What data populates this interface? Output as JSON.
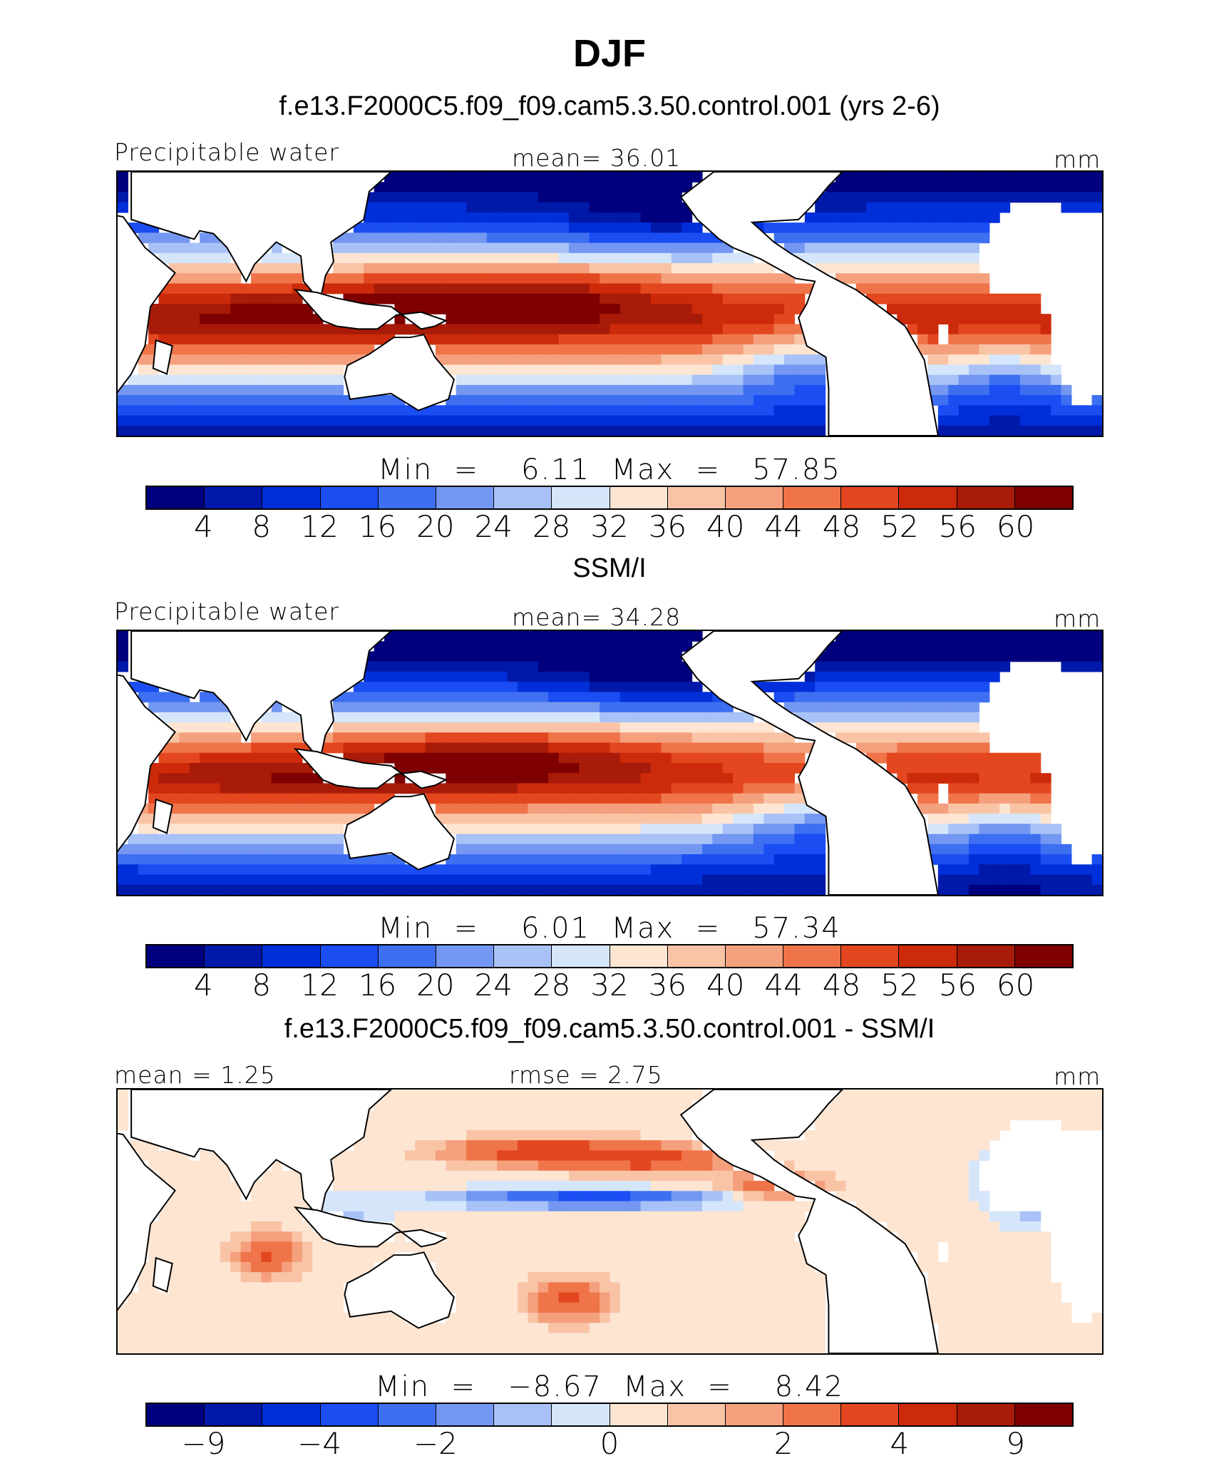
{
  "main_title": "DJF",
  "colors_seq": [
    "#00007f",
    "#0019a8",
    "#002fd9",
    "#1a4df2",
    "#3d6ff0",
    "#7497f2",
    "#a8c2f7",
    "#d5e6fb",
    "#fde5d2",
    "#f9c4a6",
    "#f5a07d",
    "#ef7449",
    "#e3471f",
    "#cc2a0a",
    "#a81b08",
    "#7f0000"
  ],
  "panels": [
    {
      "title": "f.e13.F2000C5.f09_f09.cam5.3.50.control.001 (yrs 2-6)",
      "left_label": "Precipitable water",
      "center_label": "mean=  36.01",
      "right_label": "mm",
      "minmax": "Min  =    6.11  Max  =   57.85",
      "ticks": [
        "4",
        "8",
        "12",
        "16",
        "20",
        "24",
        "28",
        "32",
        "36",
        "40",
        "44",
        "48",
        "52",
        "56",
        "60"
      ],
      "field": "model"
    },
    {
      "title": "SSM/I",
      "left_label": "Precipitable water",
      "center_label": "mean=  34.28",
      "right_label": "mm",
      "minmax": "Min  =    6.01  Max  =   57.34",
      "ticks": [
        "4",
        "8",
        "12",
        "16",
        "20",
        "24",
        "28",
        "32",
        "36",
        "40",
        "44",
        "48",
        "52",
        "56",
        "60"
      ],
      "field": "obs"
    },
    {
      "title": "f.e13.F2000C5.f09_f09.cam5.3.50.control.001 - SSM/I",
      "left_label": "mean =   1.25",
      "center_label": "rmse =   2.75",
      "right_label": "mm",
      "minmax": "Min  =   −8.67  Max  =    8.42",
      "ticks": [
        "−9",
        "−4",
        "−2",
        "0",
        "2",
        "4",
        "9"
      ],
      "field": "diff"
    }
  ]
}
